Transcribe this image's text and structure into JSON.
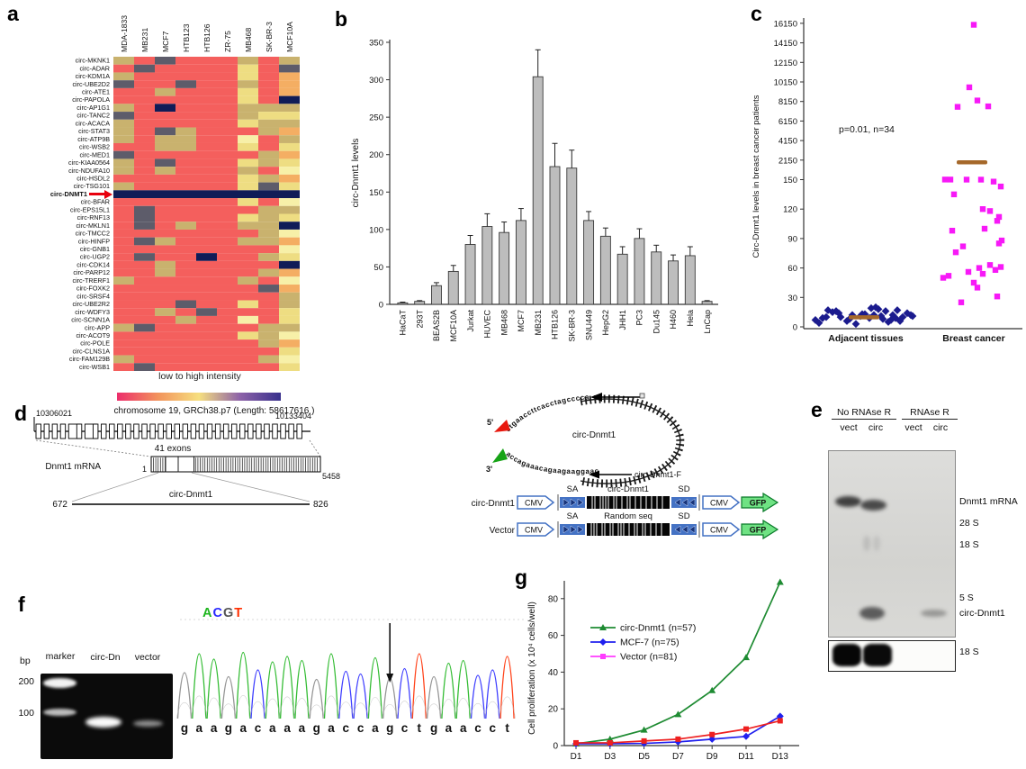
{
  "panel_labels": {
    "a": "a",
    "b": "b",
    "c": "c",
    "d": "d",
    "e": "e",
    "f": "f",
    "g": "g"
  },
  "heatmap": {
    "columns": [
      "MDA-1833",
      "MB231",
      "MCF7",
      "HTB123",
      "HTB126",
      "ZR-75",
      "MB468",
      "SK-BR-3",
      "MCF10A"
    ],
    "rows": [
      "circ-MKNK1",
      "circ-ADAR",
      "circ-KDM1A",
      "circ-UBE2D2",
      "circ-ATE1",
      "circ-PAPOLA",
      "circ-AP1G1",
      "circ-TANC2",
      "circ-ACACA",
      "circ-STAT3",
      "circ-ATP9B",
      "circ-WSB2",
      "circ-MED1",
      "circ-KIAA0564",
      "circ-NDUFA10",
      "circ-HSDL2",
      "circ-TSG101",
      "circ-DNMT1",
      "circ-BFAR",
      "circ-EPS15L1",
      "circ-RNF13",
      "circ-MKLN1",
      "circ-TMCC2",
      "circ-HINFP",
      "circ-GNB1",
      "circ-UGP2",
      "circ-CDK14",
      "circ-PARP12",
      "circ-TRERF1",
      "circ-FOXK2",
      "circ-SRSF4",
      "circ-UBE2R2",
      "circ-WDFY3",
      "circ-SCNN1A",
      "circ-APP",
      "circ-ACOT9",
      "circ-POLE",
      "circ-CLNS1A",
      "circ-FAM129B",
      "circ-WSB1"
    ],
    "highlight_row_index": 17,
    "highlight_color": "#e8000d",
    "palette": {
      "R": "#f45f5d",
      "T": "#c9b26e",
      "D": "#5d5c6a",
      "Y": "#eedd82",
      "L": "#f7f0a8",
      "O": "#f4ae63",
      "N": "#101c57"
    },
    "cells": [
      "TRDRRRTRT",
      "RDRRRRYRD",
      "TRRRRRYRO",
      "DRRDRRTRO",
      "RRTRRRYRO",
      "RRRRRRYRN",
      "TRNRRRTTT",
      "DRRRRRTYY",
      "TRRRRRYTT",
      "TRDTRRRTO",
      "TRTTRRLRT",
      "RRTTRRYRY",
      "DRRRRRRTO",
      "TRDRRRYTY",
      "TRTRRRTRL",
      "RRRRRRYTO",
      "TRRRRRYDY",
      "NNNNNNNNN",
      "RRRRRRYRL",
      "RDRRRRRTT",
      "RDRRRRYTY",
      "RDRTRRTTN",
      "RRRRRRRTL",
      "RDTRRRTTO",
      "RRRRRRRRL",
      "RDRRNRRTY",
      "RRTRRRRRN",
      "RRTRRRRTO",
      "TRRRRRTRL",
      "RRRRRRRDO",
      "RRRRRRRRT",
      "RRRDRRYRT",
      "RRTRDRRRY",
      "RRRTRRLRY",
      "TDRRRRRTT",
      "RRRRRRYTL",
      "RRRRRRRTO",
      "RRRRRRRRY",
      "TRRRRRRTL",
      "RDRRRRRRY"
    ],
    "legend_caption": "low to high intensity",
    "legend_gradient": [
      "#ec2d6b",
      "#f2935c",
      "#f6df7f",
      "#8d62a8",
      "#38308c"
    ]
  },
  "bar_chart": {
    "type": "bar",
    "ylabel": "circ-Dnmt1 levels",
    "ylim": [
      0,
      350
    ],
    "yticks": [
      0,
      50,
      100,
      150,
      200,
      250,
      300,
      350
    ],
    "categories": [
      "HaCaT",
      "293T",
      "BEAS2B",
      "MCF10A",
      "Jurkat",
      "HUVEC",
      "MB468",
      "MCF7",
      "MB231",
      "HTB126",
      "SK-BR-3",
      "SNU449",
      "HepG2",
      "JHH1",
      "PC3",
      "Du145",
      "H460",
      "Hela",
      "LnCap"
    ],
    "values": [
      2,
      4,
      25,
      44,
      80,
      104,
      96,
      112,
      304,
      184,
      182,
      112,
      91,
      67,
      88,
      70,
      58,
      65,
      4
    ],
    "errors": [
      1,
      1,
      4,
      8,
      12,
      17,
      14,
      16,
      36,
      31,
      24,
      12,
      11,
      10,
      13,
      9,
      8,
      12,
      1
    ],
    "bar_color": "#bdbdbd"
  },
  "scatter_chart": {
    "type": "scatter",
    "ylabel": "Circ-Dnmt1 levels in breast cancer patients",
    "annotation": "p=0.01, n=34",
    "yticks": [
      0,
      30,
      60,
      90,
      120,
      150,
      2150,
      4150,
      6150,
      8150,
      10150,
      12150,
      14150,
      16150
    ],
    "mean_color": "#a5682a",
    "groups": [
      {
        "label": "Adjacent tissues",
        "color": "#1b1b8e",
        "marker": "diamond",
        "mean": 10,
        "points": [
          [
            7,
            -54
          ],
          [
            9,
            -46
          ],
          [
            17,
            -40
          ],
          [
            16,
            -31
          ],
          [
            10,
            -26
          ],
          [
            6,
            -19
          ],
          [
            12,
            -13
          ],
          [
            3,
            -9
          ],
          [
            11,
            -4
          ],
          [
            13,
            1
          ],
          [
            9,
            6
          ],
          [
            12,
            11
          ],
          [
            18,
            16
          ],
          [
            8,
            21
          ],
          [
            5,
            27
          ],
          [
            12,
            32
          ],
          [
            17,
            37
          ],
          [
            10,
            43
          ],
          [
            14,
            48
          ],
          [
            11,
            54
          ],
          [
            4,
            -50
          ],
          [
            15,
            -35
          ],
          [
            7,
            30
          ],
          [
            19,
            8
          ],
          [
            13,
            -2
          ],
          [
            6,
            40
          ],
          [
            10,
            -42
          ],
          [
            16,
            24
          ],
          [
            12,
            52
          ],
          [
            8,
            -16
          ],
          [
            20,
            13
          ],
          [
            9,
            35
          ],
          [
            14,
            -28
          ],
          [
            11,
            19
          ]
        ]
      },
      {
        "label": "Breast cancer",
        "color": "#f719f7",
        "marker": "square",
        "mean": 1950,
        "points": [
          [
            16000,
            2
          ],
          [
            9600,
            -3
          ],
          [
            8250,
            6
          ],
          [
            7600,
            -16
          ],
          [
            7650,
            18
          ],
          [
            160,
            -30
          ],
          [
            158,
            -24
          ],
          [
            152,
            -6
          ],
          [
            150,
            10
          ],
          [
            148,
            24
          ],
          [
            143,
            32
          ],
          [
            135,
            -20
          ],
          [
            120,
            12
          ],
          [
            118,
            20
          ],
          [
            112,
            30
          ],
          [
            108,
            28
          ],
          [
            100,
            14
          ],
          [
            98,
            -22
          ],
          [
            88,
            33
          ],
          [
            85,
            30
          ],
          [
            82,
            -10
          ],
          [
            76,
            -18
          ],
          [
            63,
            20
          ],
          [
            61,
            32
          ],
          [
            60,
            8
          ],
          [
            58,
            26
          ],
          [
            56,
            -4
          ],
          [
            54,
            12
          ],
          [
            52,
            -26
          ],
          [
            50,
            -32
          ],
          [
            45,
            2
          ],
          [
            40,
            6
          ],
          [
            31,
            28
          ],
          [
            25,
            -12
          ]
        ]
      }
    ]
  },
  "panel_d": {
    "coord_left": "10306021",
    "title": "chromosome 19, GRCh38.p7 (Length: 58617616 )",
    "coord_right": "10133404",
    "exons_caption": "41 exons",
    "mrna_label": "Dnmt1 mRNA",
    "mrna_start": "1",
    "mrna_end": "5458",
    "circ_start": "672",
    "circ_label": "circ-Dnmt1",
    "circ_end": "826",
    "five_prime": "5'",
    "three_prime": "3'",
    "red_seq": "ctgaaccttcacctagcccca",
    "green_seq": "accagaaacagaagaaggaac",
    "circle_label": "circ-Dnmt1",
    "primer_f_label": "circ-Dnmt1-F",
    "constructs": [
      {
        "row_label": "circ-Dnmt1",
        "cmv": "CMV",
        "sa": "SA",
        "insert_label": "circ-Dnmt1",
        "sd": "SD",
        "cmv2": "CMV",
        "gfp": "GFP"
      },
      {
        "row_label": "Vector",
        "cmv": "CMV",
        "sa": "SA",
        "insert_label": "Random seq",
        "sd": "SD",
        "cmv2": "CMV",
        "gfp": "GFP"
      }
    ]
  },
  "panel_e": {
    "group1": "No RNAse R",
    "group2": "RNAse R",
    "lanes": [
      "vect",
      "circ",
      "vect",
      "circ"
    ],
    "labels": [
      "Dnmt1 mRNA",
      "28 S",
      "18 S",
      "5 S",
      "circ-Dnmt1"
    ],
    "bottom_label": "18 S"
  },
  "panel_f": {
    "bp": "bp",
    "lanes": [
      "marker",
      "circ-Dn",
      "vector"
    ],
    "markers": [
      "200",
      "100"
    ],
    "acgt": [
      "A",
      "C",
      "G",
      "T"
    ],
    "legend_colors": {
      "A": "#1db51d",
      "C": "#2929ff",
      "G": "#555555",
      "T": "#ff2e00"
    },
    "sequence": "gaagacaaagaccagctgaacct",
    "base_colors": {
      "a": "#1db51d",
      "c": "#2929ff",
      "g": "#8a8a8a",
      "t": "#ff2e00"
    }
  },
  "line_chart": {
    "type": "line",
    "ylabel": "Cell proliferation (x 10⁴ cells/well)",
    "yticks": [
      0,
      20,
      40,
      60,
      80
    ],
    "x": [
      "D1",
      "D3",
      "D5",
      "D7",
      "D9",
      "D11",
      "D13"
    ],
    "series": [
      {
        "name": "circ-Dnmt1 (n=57)",
        "color": "#1e8b32",
        "legend_color": "#1e8b32",
        "marker": "triangle",
        "values": [
          1,
          3.5,
          8.5,
          17,
          30,
          48,
          89
        ]
      },
      {
        "name": "MCF-7 (n=75)",
        "color": "#2020ee",
        "legend_color": "#2020ee",
        "marker": "diamond",
        "values": [
          1,
          1,
          1.2,
          2,
          3.5,
          5,
          16
        ]
      },
      {
        "name": "Vector (n=81)",
        "color": "#ee2020",
        "legend_color": "#ff3cff",
        "marker": "square",
        "values": [
          1.5,
          1.5,
          2.5,
          3.5,
          6,
          9,
          13.5
        ]
      }
    ]
  }
}
